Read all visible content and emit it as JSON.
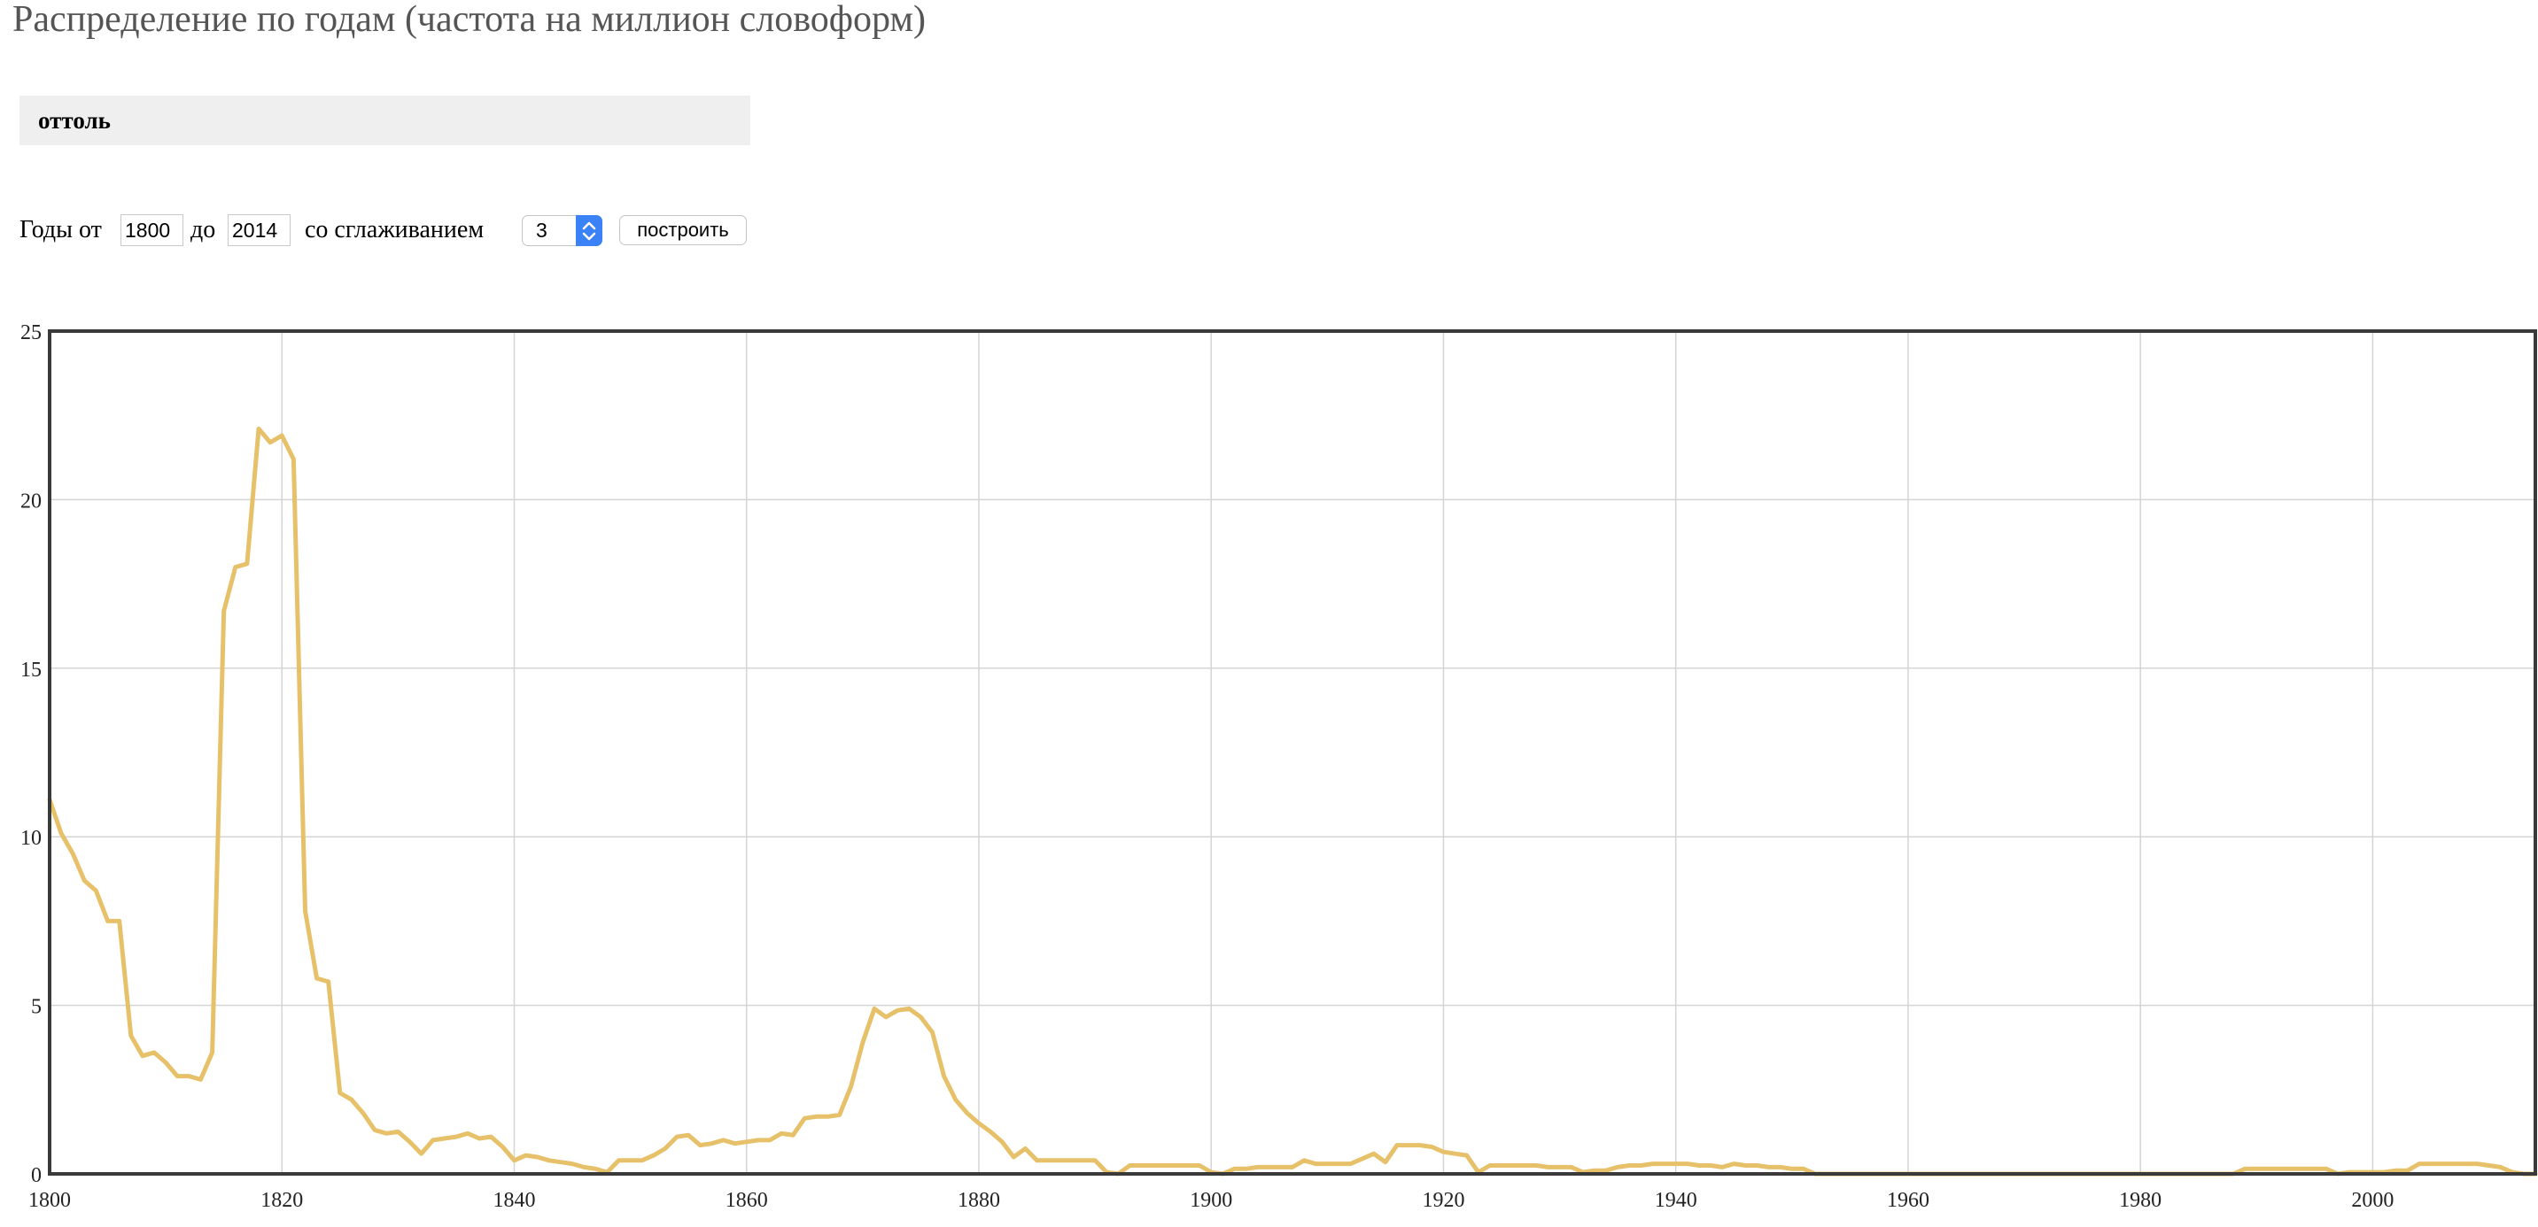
{
  "header": {
    "title": "Распределение по годам (частота на миллион словоформ)"
  },
  "query": {
    "word": "оттоль"
  },
  "controls": {
    "years_label": "Годы от",
    "year_from": "1800",
    "to_label": "до",
    "year_to": "2014",
    "smoothing_label": "со сглаживанием",
    "smoothing_value": "3",
    "build_label": "построить"
  },
  "colors": {
    "line": "#e6c16a",
    "grid": "#d4d4d4",
    "frame": "#3a3a3a"
  },
  "chart_data": {
    "type": "line",
    "title": "",
    "xlabel": "",
    "ylabel": "",
    "xlim": [
      1800,
      2014
    ],
    "ylim": [
      0,
      25
    ],
    "grid": true,
    "x_ticks": [
      1800,
      1820,
      1840,
      1860,
      1880,
      1900,
      1920,
      1940,
      1960,
      1980,
      2000
    ],
    "y_ticks": [
      0,
      5,
      10,
      15,
      20,
      25
    ],
    "series": [
      {
        "points": [
          [
            1800,
            11.1
          ],
          [
            1801,
            10.1
          ],
          [
            1802,
            9.5
          ],
          [
            1803,
            8.7
          ],
          [
            1804,
            8.4
          ],
          [
            1805,
            7.5
          ],
          [
            1806,
            7.5
          ],
          [
            1807,
            4.1
          ],
          [
            1808,
            3.5
          ],
          [
            1809,
            3.6
          ],
          [
            1810,
            3.3
          ],
          [
            1811,
            2.9
          ],
          [
            1812,
            2.9
          ],
          [
            1813,
            2.8
          ],
          [
            1814,
            3.6
          ],
          [
            1815,
            16.7
          ],
          [
            1816,
            18.0
          ],
          [
            1817,
            18.1
          ],
          [
            1818,
            22.1
          ],
          [
            1819,
            21.7
          ],
          [
            1820,
            21.9
          ],
          [
            1821,
            21.2
          ],
          [
            1822,
            7.8
          ],
          [
            1823,
            5.8
          ],
          [
            1824,
            5.7
          ],
          [
            1825,
            2.4
          ],
          [
            1826,
            2.2
          ],
          [
            1827,
            1.8
          ],
          [
            1828,
            1.3
          ],
          [
            1829,
            1.2
          ],
          [
            1830,
            1.25
          ],
          [
            1831,
            0.95
          ],
          [
            1832,
            0.6
          ],
          [
            1833,
            1.0
          ],
          [
            1834,
            1.05
          ],
          [
            1835,
            1.1
          ],
          [
            1836,
            1.2
          ],
          [
            1837,
            1.05
          ],
          [
            1838,
            1.1
          ],
          [
            1839,
            0.8
          ],
          [
            1840,
            0.4
          ],
          [
            1841,
            0.55
          ],
          [
            1842,
            0.5
          ],
          [
            1843,
            0.4
          ],
          [
            1844,
            0.35
          ],
          [
            1845,
            0.3
          ],
          [
            1846,
            0.2
          ],
          [
            1847,
            0.15
          ],
          [
            1848,
            0.05
          ],
          [
            1849,
            0.4
          ],
          [
            1850,
            0.4
          ],
          [
            1851,
            0.4
          ],
          [
            1852,
            0.55
          ],
          [
            1853,
            0.75
          ],
          [
            1854,
            1.1
          ],
          [
            1855,
            1.15
          ],
          [
            1856,
            0.85
          ],
          [
            1857,
            0.9
          ],
          [
            1858,
            1.0
          ],
          [
            1859,
            0.9
          ],
          [
            1860,
            0.95
          ],
          [
            1861,
            1.0
          ],
          [
            1862,
            1.0
          ],
          [
            1863,
            1.2
          ],
          [
            1864,
            1.15
          ],
          [
            1865,
            1.65
          ],
          [
            1866,
            1.7
          ],
          [
            1867,
            1.7
          ],
          [
            1868,
            1.75
          ],
          [
            1869,
            2.6
          ],
          [
            1870,
            3.9
          ],
          [
            1871,
            4.9
          ],
          [
            1872,
            4.65
          ],
          [
            1873,
            4.85
          ],
          [
            1874,
            4.9
          ],
          [
            1875,
            4.65
          ],
          [
            1876,
            4.2
          ],
          [
            1877,
            2.9
          ],
          [
            1878,
            2.2
          ],
          [
            1879,
            1.8
          ],
          [
            1880,
            1.5
          ],
          [
            1881,
            1.25
          ],
          [
            1882,
            0.95
          ],
          [
            1883,
            0.5
          ],
          [
            1884,
            0.75
          ],
          [
            1885,
            0.4
          ],
          [
            1886,
            0.4
          ],
          [
            1887,
            0.4
          ],
          [
            1888,
            0.4
          ],
          [
            1889,
            0.4
          ],
          [
            1890,
            0.4
          ],
          [
            1891,
            0.05
          ],
          [
            1892,
            0.0
          ],
          [
            1893,
            0.25
          ],
          [
            1894,
            0.25
          ],
          [
            1895,
            0.25
          ],
          [
            1896,
            0.25
          ],
          [
            1897,
            0.25
          ],
          [
            1898,
            0.25
          ],
          [
            1899,
            0.25
          ],
          [
            1900,
            0.05
          ],
          [
            1901,
            0.0
          ],
          [
            1902,
            0.15
          ],
          [
            1903,
            0.15
          ],
          [
            1904,
            0.2
          ],
          [
            1905,
            0.2
          ],
          [
            1906,
            0.2
          ],
          [
            1907,
            0.2
          ],
          [
            1908,
            0.4
          ],
          [
            1909,
            0.3
          ],
          [
            1910,
            0.3
          ],
          [
            1911,
            0.3
          ],
          [
            1912,
            0.3
          ],
          [
            1913,
            0.45
          ],
          [
            1914,
            0.6
          ],
          [
            1915,
            0.35
          ],
          [
            1916,
            0.85
          ],
          [
            1917,
            0.85
          ],
          [
            1918,
            0.85
          ],
          [
            1919,
            0.8
          ],
          [
            1920,
            0.65
          ],
          [
            1921,
            0.6
          ],
          [
            1922,
            0.55
          ],
          [
            1923,
            0.05
          ],
          [
            1924,
            0.25
          ],
          [
            1925,
            0.25
          ],
          [
            1926,
            0.25
          ],
          [
            1927,
            0.25
          ],
          [
            1928,
            0.25
          ],
          [
            1929,
            0.2
          ],
          [
            1930,
            0.2
          ],
          [
            1931,
            0.2
          ],
          [
            1932,
            0.05
          ],
          [
            1933,
            0.1
          ],
          [
            1934,
            0.1
          ],
          [
            1935,
            0.2
          ],
          [
            1936,
            0.25
          ],
          [
            1937,
            0.25
          ],
          [
            1938,
            0.3
          ],
          [
            1939,
            0.3
          ],
          [
            1940,
            0.3
          ],
          [
            1941,
            0.3
          ],
          [
            1942,
            0.25
          ],
          [
            1943,
            0.25
          ],
          [
            1944,
            0.2
          ],
          [
            1945,
            0.3
          ],
          [
            1946,
            0.25
          ],
          [
            1947,
            0.25
          ],
          [
            1948,
            0.2
          ],
          [
            1949,
            0.2
          ],
          [
            1950,
            0.15
          ],
          [
            1951,
            0.15
          ],
          [
            1952,
            0.0
          ],
          [
            1953,
            0.0
          ],
          [
            1960,
            0.0
          ],
          [
            1970,
            0.0
          ],
          [
            1980,
            0.0
          ],
          [
            1988,
            0.0
          ],
          [
            1989,
            0.15
          ],
          [
            1990,
            0.15
          ],
          [
            1991,
            0.15
          ],
          [
            1992,
            0.15
          ],
          [
            1993,
            0.15
          ],
          [
            1994,
            0.15
          ],
          [
            1995,
            0.15
          ],
          [
            1996,
            0.15
          ],
          [
            1997,
            0.0
          ],
          [
            1998,
            0.05
          ],
          [
            1999,
            0.05
          ],
          [
            2000,
            0.05
          ],
          [
            2001,
            0.05
          ],
          [
            2002,
            0.1
          ],
          [
            2003,
            0.1
          ],
          [
            2004,
            0.3
          ],
          [
            2005,
            0.3
          ],
          [
            2006,
            0.3
          ],
          [
            2007,
            0.3
          ],
          [
            2008,
            0.3
          ],
          [
            2009,
            0.3
          ],
          [
            2010,
            0.25
          ],
          [
            2011,
            0.2
          ],
          [
            2012,
            0.05
          ],
          [
            2013,
            0.0
          ],
          [
            2014,
            0.0
          ]
        ]
      }
    ]
  }
}
